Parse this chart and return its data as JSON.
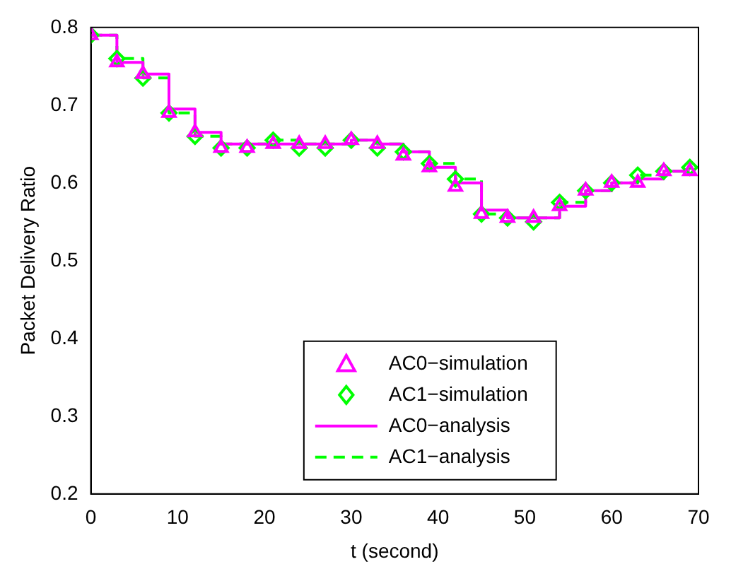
{
  "chart_data": {
    "type": "scatter",
    "xlabel": "t (second)",
    "ylabel": "Packet Delivery Ratio",
    "x": [
      0,
      3,
      6,
      9,
      12,
      15,
      18,
      21,
      24,
      27,
      30,
      33,
      36,
      39,
      42,
      45,
      48,
      51,
      54,
      57,
      60,
      63,
      66,
      69
    ],
    "series": [
      {
        "name": "AC0−simulation",
        "marker": "triangle",
        "color": "#ff00ff",
        "values": [
          0.79,
          0.755,
          0.74,
          0.69,
          0.665,
          0.645,
          0.645,
          0.65,
          0.65,
          0.65,
          0.655,
          0.65,
          0.635,
          0.62,
          0.595,
          0.56,
          0.555,
          0.555,
          0.57,
          0.59,
          0.6,
          0.6,
          0.615,
          0.615
        ]
      },
      {
        "name": "AC1−simulation",
        "marker": "diamond",
        "color": "#00ff00",
        "values": [
          0.79,
          0.76,
          0.735,
          0.69,
          0.66,
          0.645,
          0.645,
          0.655,
          0.645,
          0.645,
          0.655,
          0.645,
          0.64,
          0.625,
          0.605,
          0.56,
          0.555,
          0.55,
          0.575,
          0.59,
          0.6,
          0.61,
          0.615,
          0.62
        ]
      },
      {
        "name": "AC0−analysis",
        "type": "step",
        "line_style": "solid",
        "color": "#ff00ff",
        "values": [
          0.79,
          0.755,
          0.74,
          0.695,
          0.665,
          0.65,
          0.65,
          0.65,
          0.65,
          0.65,
          0.655,
          0.65,
          0.64,
          0.62,
          0.6,
          0.565,
          0.555,
          0.555,
          0.57,
          0.59,
          0.6,
          0.605,
          0.615,
          0.615
        ]
      },
      {
        "name": "AC1−analysis",
        "type": "step",
        "line_style": "dashed",
        "color": "#00ff00",
        "values": [
          0.79,
          0.76,
          0.735,
          0.69,
          0.66,
          0.65,
          0.65,
          0.655,
          0.65,
          0.65,
          0.655,
          0.65,
          0.64,
          0.625,
          0.605,
          0.56,
          0.555,
          0.555,
          0.575,
          0.59,
          0.6,
          0.61,
          0.615,
          0.62
        ]
      }
    ],
    "xlim": [
      0,
      70
    ],
    "xticks": [
      0,
      10,
      20,
      30,
      40,
      50,
      60,
      70
    ],
    "ylim": [
      0.2,
      0.8
    ],
    "yticks": [
      0.2,
      0.3,
      0.4,
      0.5,
      0.6,
      0.7,
      0.8
    ],
    "grid": false,
    "legend": "bottom"
  }
}
